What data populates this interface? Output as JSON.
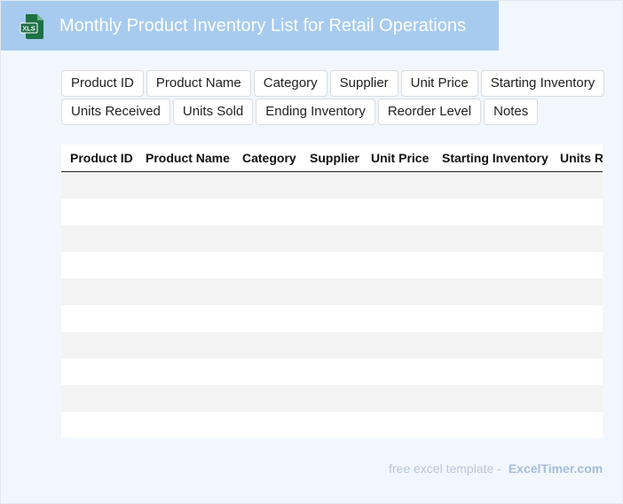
{
  "header": {
    "title": "Monthly Product Inventory List for Retail Operations",
    "icon": "excel-file-icon",
    "icon_text": "XLS",
    "bg_color": "#a7cbef",
    "icon_color": "#1e7145"
  },
  "fields": {
    "row1": [
      "Product ID",
      "Product Name",
      "Category",
      "Supplier",
      "Unit Price",
      "Starting Inventory"
    ],
    "row2": [
      "Units Received",
      "Units Sold",
      "Ending Inventory",
      "Reorder Level",
      "Notes"
    ]
  },
  "table": {
    "columns": [
      "Product ID",
      "Product Name",
      "Category",
      "Supplier",
      "Unit Price",
      "Starting Inventory",
      "Units Received"
    ],
    "row_count": 10,
    "stripe_color": "#f3f3f3"
  },
  "footer": {
    "text": "free excel template -",
    "brand": "ExcelTimer.com"
  }
}
